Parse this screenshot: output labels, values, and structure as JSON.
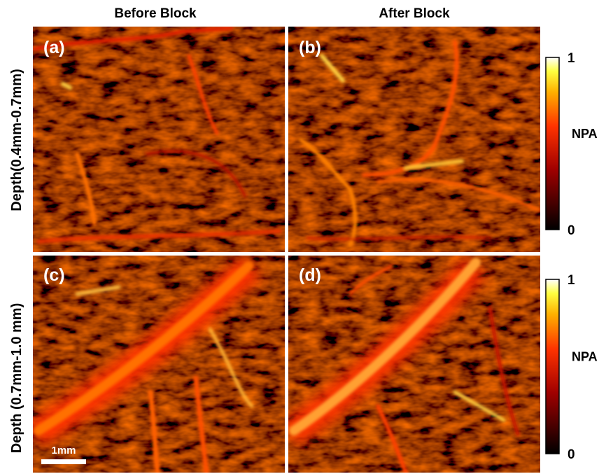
{
  "headers": [
    "Before Block",
    "After Block"
  ],
  "row_labels": [
    "Depth(0.4mm-0.7mm)",
    "Depth (0.7mm-1.0 mm)"
  ],
  "panels": [
    "(a)",
    "(b)",
    "(c)",
    "(d)"
  ],
  "colorbars": [
    {
      "label": "NPA",
      "lim": [
        0,
        1
      ],
      "ticks": [
        0,
        1
      ]
    },
    {
      "label": "NPA",
      "lim": [
        0,
        1
      ],
      "ticks": [
        0,
        1
      ]
    }
  ],
  "scale_bar": "1mm"
}
